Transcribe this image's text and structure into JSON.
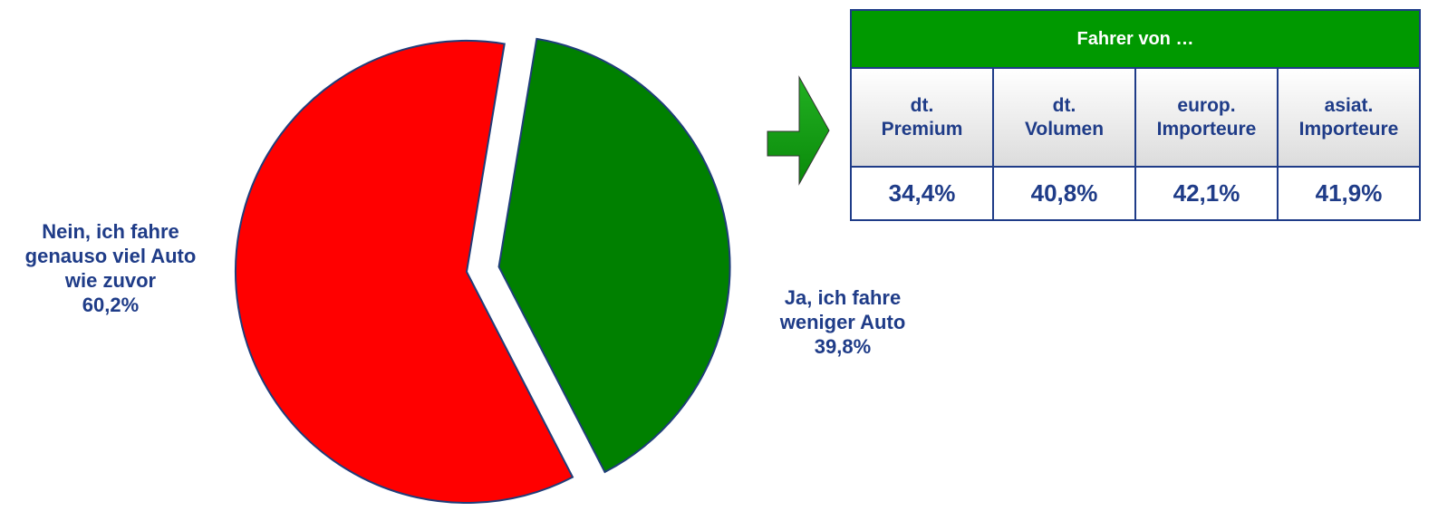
{
  "chart_data": {
    "type": "pie",
    "categories": [
      "Nein, ich fahre genauso viel Auto wie zuvor",
      "Ja, ich fahre weniger Auto"
    ],
    "values": [
      60.2,
      39.8
    ],
    "value_labels": [
      "60,2%",
      "39,8%"
    ],
    "colors": [
      "#ff0000",
      "#008000"
    ]
  },
  "table": {
    "title": "Fahrer von …",
    "headers": [
      "dt. Premium",
      "dt. Volumen",
      "europ. Importeure",
      "asiat. Importeure"
    ],
    "rows": [
      [
        "34,4%",
        "40,8%",
        "42,1%",
        "41,9%"
      ]
    ]
  }
}
